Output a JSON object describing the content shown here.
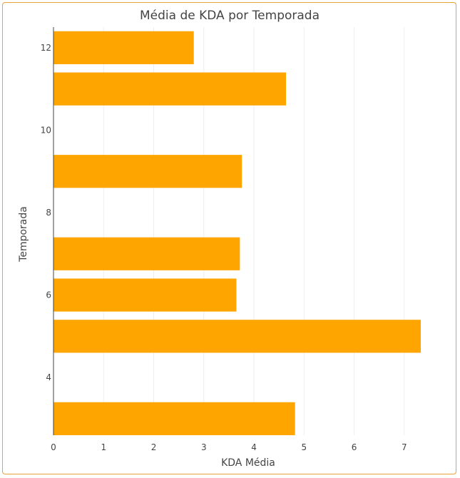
{
  "chart_data": {
    "type": "bar",
    "orientation": "horizontal",
    "title": "Média de KDA por Temporada",
    "xlabel": "KDA Média",
    "ylabel": "Temporada",
    "categories": [
      3,
      5,
      6,
      7,
      9,
      11,
      12
    ],
    "values": [
      4.82,
      7.33,
      3.65,
      3.72,
      3.76,
      4.64,
      2.8
    ],
    "xlim": [
      0,
      7.7
    ],
    "ylim": [
      2.6,
      12.5
    ],
    "x_ticks": [
      "0",
      "1",
      "2",
      "3",
      "4",
      "5",
      "6",
      "7"
    ],
    "y_ticks": [
      "4",
      "6",
      "8",
      "10",
      "12"
    ],
    "grid": "vertical",
    "bar_color": "#ffa500"
  }
}
